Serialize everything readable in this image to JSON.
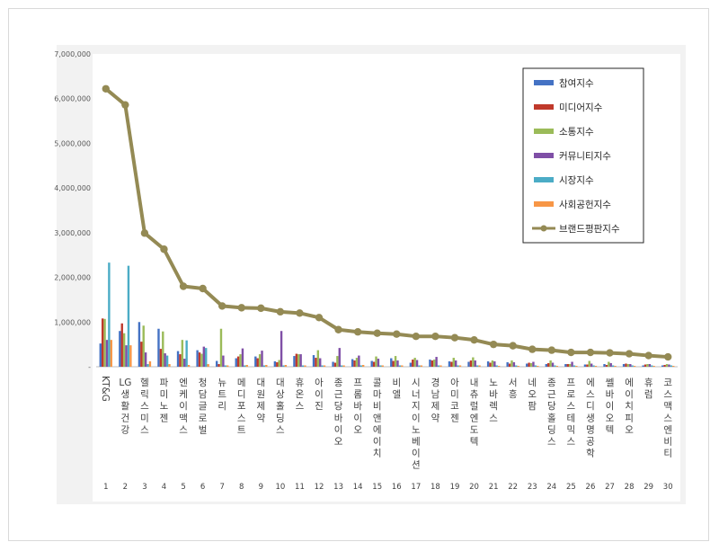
{
  "chart_data": {
    "type": "bar",
    "title": "",
    "xlabel": "",
    "ylabel": "",
    "ylim": [
      0,
      7000000
    ],
    "y_ticks": [
      "-",
      "1,000,000",
      "2,000,000",
      "3,000,000",
      "4,000,000",
      "5,000,000",
      "6,000,000",
      "7,000,000"
    ],
    "grid": false,
    "legend_position": "top-right",
    "ranks": [
      "1",
      "2",
      "3",
      "4",
      "5",
      "6",
      "7",
      "8",
      "9",
      "10",
      "11",
      "12",
      "13",
      "14",
      "15",
      "16",
      "17",
      "18",
      "19",
      "20",
      "21",
      "22",
      "23",
      "24",
      "25",
      "26",
      "27",
      "28",
      "29",
      "30"
    ],
    "categories": [
      "KT&G",
      "LG생활건강",
      "헬릭스미스",
      "파미노젠",
      "엔케이맥스",
      "청담글로벌",
      "뉴트리",
      "메디포스트",
      "대원제약",
      "대상홀딩스",
      "휴온스",
      "아이진",
      "종근당바이오",
      "프롬바이오",
      "콜마비앤에이치",
      "비엘",
      "시너지이노베이션",
      "경남제약",
      "아미코젠",
      "내츄럴엔도텍",
      "노바렉스",
      "서흥",
      "네오팜",
      "종근당홀딩스",
      "프로스테믹스",
      "에스디생명공학",
      "쎌바이오텍",
      "에이치피오",
      "휴럼",
      "코스맥스엔비티"
    ],
    "series": [
      {
        "name": "참여지수",
        "color": "#4472c4",
        "kind": "bar",
        "values": [
          520000,
          800000,
          1000000,
          850000,
          350000,
          370000,
          130000,
          190000,
          230000,
          120000,
          240000,
          260000,
          110000,
          170000,
          130000,
          190000,
          90000,
          160000,
          120000,
          110000,
          120000,
          100000,
          70000,
          60000,
          60000,
          50000,
          60000,
          60000,
          30000,
          30000
        ]
      },
      {
        "name": "미디어지수",
        "color": "#c0392b",
        "kind": "bar",
        "values": [
          1080000,
          970000,
          560000,
          400000,
          280000,
          320000,
          60000,
          230000,
          190000,
          100000,
          290000,
          200000,
          90000,
          140000,
          110000,
          130000,
          160000,
          140000,
          110000,
          140000,
          90000,
          70000,
          90000,
          80000,
          60000,
          50000,
          40000,
          70000,
          50000,
          40000
        ]
      },
      {
        "name": "소통지수",
        "color": "#9bbb59",
        "kind": "bar",
        "values": [
          1070000,
          750000,
          920000,
          790000,
          600000,
          290000,
          850000,
          280000,
          280000,
          150000,
          280000,
          370000,
          240000,
          200000,
          230000,
          240000,
          200000,
          160000,
          200000,
          210000,
          140000,
          140000,
          80000,
          140000,
          60000,
          130000,
          110000,
          60000,
          60000,
          60000
        ]
      },
      {
        "name": "커뮤니티지수",
        "color": "#7f4fa6",
        "kind": "bar",
        "values": [
          600000,
          480000,
          320000,
          300000,
          180000,
          450000,
          250000,
          410000,
          360000,
          800000,
          280000,
          190000,
          420000,
          250000,
          180000,
          140000,
          150000,
          220000,
          140000,
          140000,
          120000,
          100000,
          110000,
          90000,
          110000,
          70000,
          80000,
          60000,
          60000,
          50000
        ]
      },
      {
        "name": "시장지수",
        "color": "#4bacc6",
        "kind": "bar",
        "values": [
          2330000,
          2260000,
          60000,
          250000,
          590000,
          420000,
          30000,
          30000,
          30000,
          30000,
          30000,
          30000,
          30000,
          30000,
          30000,
          30000,
          30000,
          30000,
          30000,
          30000,
          30000,
          30000,
          30000,
          30000,
          30000,
          30000,
          30000,
          30000,
          30000,
          30000
        ]
      },
      {
        "name": "사회공헌지수",
        "color": "#f79646",
        "kind": "bar",
        "values": [
          600000,
          480000,
          120000,
          60000,
          40000,
          60000,
          30000,
          40000,
          40000,
          40000,
          30000,
          30000,
          30000,
          40000,
          30000,
          30000,
          30000,
          30000,
          30000,
          30000,
          20000,
          20000,
          20000,
          20000,
          20000,
          20000,
          20000,
          20000,
          20000,
          20000
        ]
      },
      {
        "name": "브랜드평판지수",
        "color": "#948a54",
        "kind": "line",
        "values": [
          6220000,
          5860000,
          2990000,
          2630000,
          1800000,
          1750000,
          1360000,
          1320000,
          1310000,
          1230000,
          1200000,
          1100000,
          830000,
          780000,
          750000,
          730000,
          680000,
          680000,
          650000,
          600000,
          500000,
          470000,
          390000,
          370000,
          320000,
          320000,
          310000,
          290000,
          250000,
          220000
        ]
      }
    ]
  }
}
